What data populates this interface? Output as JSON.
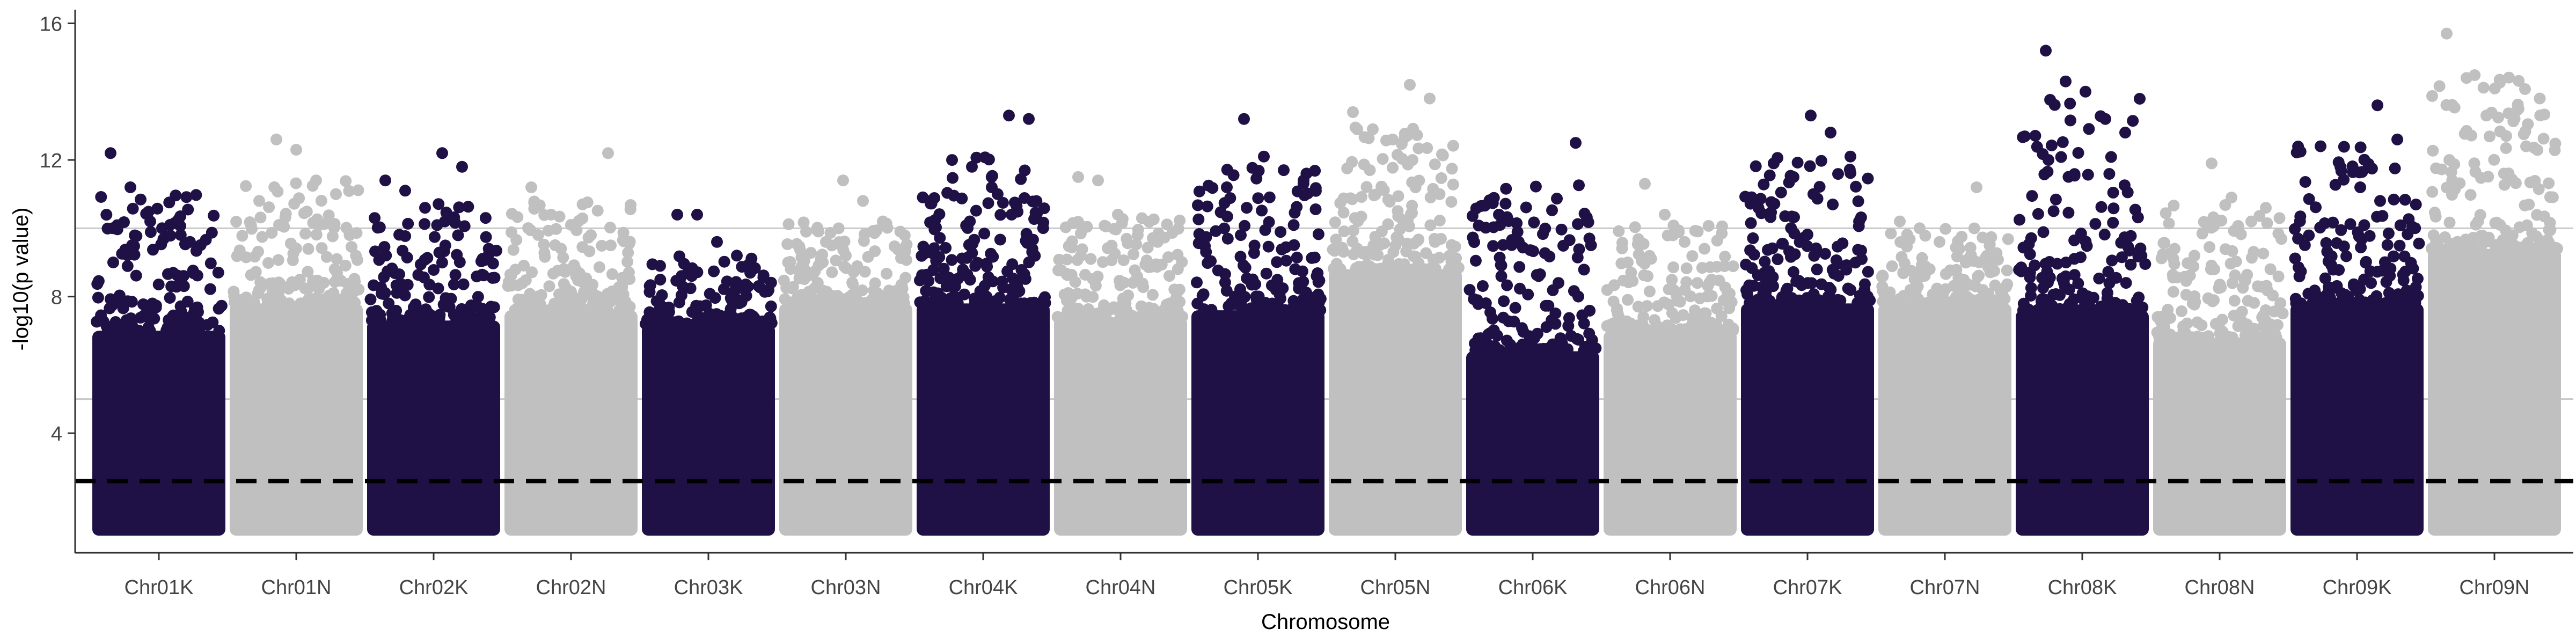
{
  "chart_data": {
    "type": "scatter",
    "subtype": "manhattan",
    "title": "",
    "xlabel": "Chromosome",
    "ylabel": "-log10(p value)",
    "ylim": [
      0.5,
      16.4
    ],
    "yticks": [
      4,
      8,
      12,
      16
    ],
    "grid": "horizontal lines at 5 and 10",
    "legend": "none",
    "colors": {
      "dark": "#1f1145",
      "light": "#c0c0c0",
      "threshold": "#000000",
      "grid": "#c8c8c8",
      "axis": "#333333"
    },
    "horizontal_lines": [
      {
        "y": 2.6,
        "style": "dashed",
        "color": "#000000"
      },
      {
        "y": 5,
        "style": "solid",
        "color": "#c8c8c8"
      },
      {
        "y": 10,
        "style": "solid",
        "color": "#c8c8c8"
      }
    ],
    "categories": [
      "Chr01K",
      "Chr01N",
      "Chr02K",
      "Chr02N",
      "Chr03K",
      "Chr03N",
      "Chr04K",
      "Chr04N",
      "Chr05K",
      "Chr05N",
      "Chr06K",
      "Chr06N",
      "Chr07K",
      "Chr07N",
      "Chr08K",
      "Chr08N",
      "Chr09K",
      "Chr09N"
    ],
    "series": [
      {
        "category": "Chr01K",
        "color": "dark",
        "baseline_max": 7.0,
        "top_points": [
          12.2,
          11.2,
          10.2,
          10.1,
          9.6,
          9.0
        ]
      },
      {
        "category": "Chr01N",
        "color": "light",
        "baseline_max": 7.8,
        "top_points": [
          12.6,
          12.3,
          11.4,
          11.0,
          10.8,
          10.1
        ]
      },
      {
        "category": "Chr02K",
        "color": "dark",
        "baseline_max": 7.3,
        "top_points": [
          12.2,
          11.8,
          11.4,
          11.1,
          10.6,
          10.2
        ]
      },
      {
        "category": "Chr02N",
        "color": "light",
        "baseline_max": 7.6,
        "top_points": [
          12.2,
          11.2,
          10.4,
          10.1,
          9.8,
          9.5
        ]
      },
      {
        "category": "Chr03K",
        "color": "dark",
        "baseline_max": 7.2,
        "top_points": [
          10.4,
          10.4,
          9.6,
          9.2,
          8.9,
          8.5
        ]
      },
      {
        "category": "Chr03N",
        "color": "light",
        "baseline_max": 7.8,
        "top_points": [
          11.4,
          10.8,
          10.2,
          9.9,
          9.6,
          9.2
        ]
      },
      {
        "category": "Chr04K",
        "color": "dark",
        "baseline_max": 7.8,
        "top_points": [
          13.3,
          13.2,
          12.0,
          11.8,
          11.2,
          10.4
        ]
      },
      {
        "category": "Chr04N",
        "color": "light",
        "baseline_max": 7.4,
        "top_points": [
          11.5,
          11.4,
          10.4,
          9.8,
          9.6,
          9.2
        ]
      },
      {
        "category": "Chr05K",
        "color": "dark",
        "baseline_max": 7.6,
        "top_points": [
          13.2,
          12.1,
          11.7,
          11.4,
          11.2,
          10.6
        ]
      },
      {
        "category": "Chr05N",
        "color": "light",
        "baseline_max": 8.8,
        "top_points": [
          14.2,
          13.8,
          13.4,
          12.9,
          12.6,
          12.0
        ]
      },
      {
        "category": "Chr06K",
        "color": "dark",
        "baseline_max": 6.4,
        "top_points": [
          12.5,
          10.4,
          9.6,
          8.6,
          8.4,
          8.0
        ]
      },
      {
        "category": "Chr06N",
        "color": "light",
        "baseline_max": 7.0,
        "top_points": [
          11.3,
          10.4,
          9.6,
          9.4,
          9.0,
          8.6
        ]
      },
      {
        "category": "Chr07K",
        "color": "dark",
        "baseline_max": 7.8,
        "top_points": [
          13.3,
          12.8,
          12.1,
          11.9,
          11.5,
          11.0
        ]
      },
      {
        "category": "Chr07N",
        "color": "light",
        "baseline_max": 7.8,
        "top_points": [
          11.2,
          10.2,
          10.0,
          9.6,
          9.4,
          9.0
        ]
      },
      {
        "category": "Chr08K",
        "color": "dark",
        "baseline_max": 7.6,
        "top_points": [
          15.2,
          14.3,
          14.0,
          13.2,
          12.8,
          12.0
        ]
      },
      {
        "category": "Chr08N",
        "color": "light",
        "baseline_max": 6.8,
        "top_points": [
          11.9,
          10.9,
          10.2,
          9.4,
          9.2,
          8.8
        ]
      },
      {
        "category": "Chr09K",
        "color": "dark",
        "baseline_max": 7.8,
        "top_points": [
          13.6,
          12.6,
          12.4,
          11.8,
          11.2,
          10.8
        ]
      },
      {
        "category": "Chr09N",
        "color": "light",
        "baseline_max": 9.4,
        "top_points": [
          15.7,
          14.4,
          13.3,
          12.7,
          12.4,
          12.0
        ]
      }
    ]
  }
}
